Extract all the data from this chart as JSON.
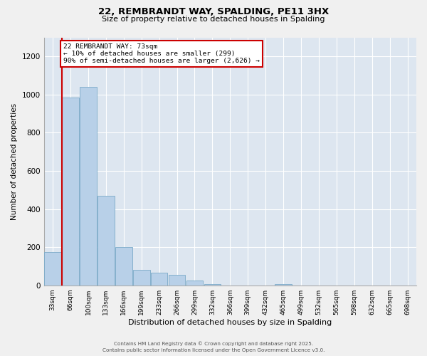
{
  "title_line1": "22, REMBRANDT WAY, SPALDING, PE11 3HX",
  "title_line2": "Size of property relative to detached houses in Spalding",
  "xlabel": "Distribution of detached houses by size in Spalding",
  "ylabel": "Number of detached properties",
  "categories": [
    "33sqm",
    "66sqm",
    "100sqm",
    "133sqm",
    "166sqm",
    "199sqm",
    "233sqm",
    "266sqm",
    "299sqm",
    "332sqm",
    "366sqm",
    "399sqm",
    "432sqm",
    "465sqm",
    "499sqm",
    "532sqm",
    "565sqm",
    "598sqm",
    "632sqm",
    "665sqm",
    "698sqm"
  ],
  "values": [
    175,
    985,
    1040,
    470,
    200,
    80,
    65,
    55,
    25,
    5,
    0,
    0,
    0,
    5,
    0,
    0,
    0,
    0,
    0,
    0,
    0
  ],
  "bar_color": "#b8d0e8",
  "bar_edge_color": "#7aaac8",
  "annotation_text_line1": "22 REMBRANDT WAY: 73sqm",
  "annotation_text_line2": "← 10% of detached houses are smaller (299)",
  "annotation_text_line3": "90% of semi-detached houses are larger (2,626) →",
  "annotation_box_facecolor": "#ffffff",
  "annotation_box_edgecolor": "#cc0000",
  "property_line_color": "#cc0000",
  "ylim": [
    0,
    1300
  ],
  "yticks": [
    0,
    200,
    400,
    600,
    800,
    1000,
    1200
  ],
  "plot_bg_color": "#dde6f0",
  "fig_bg_color": "#f0f0f0",
  "grid_color": "#ffffff",
  "footer_line1": "Contains HM Land Registry data © Crown copyright and database right 2025.",
  "footer_line2": "Contains public sector information licensed under the Open Government Licence v3.0."
}
